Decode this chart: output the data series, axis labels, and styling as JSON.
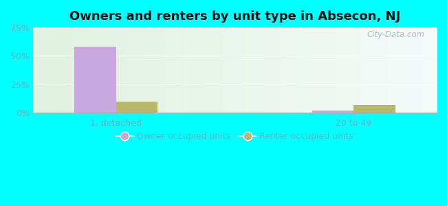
{
  "title": "Owners and renters by unit type in Absecon, NJ",
  "categories": [
    "1, detached",
    "20 to 49"
  ],
  "owner_values": [
    58.0,
    2.0
  ],
  "renter_values": [
    10.0,
    7.0
  ],
  "owner_color": "#c9a8e0",
  "renter_color": "#b8b86a",
  "ylim": [
    0,
    75
  ],
  "yticks": [
    0,
    25,
    50,
    75
  ],
  "yticklabels": [
    "0%",
    "25%",
    "50%",
    "75%"
  ],
  "legend_owner": "Owner occupied units",
  "legend_renter": "Renter occupied units",
  "bg_outer": "#00ffff",
  "watermark": "City-Data.com",
  "bar_width": 0.35,
  "group_positions": [
    1.0,
    3.0
  ],
  "title_fontsize": 13,
  "axis_fontsize": 9,
  "tick_color": "#6ab0b8"
}
